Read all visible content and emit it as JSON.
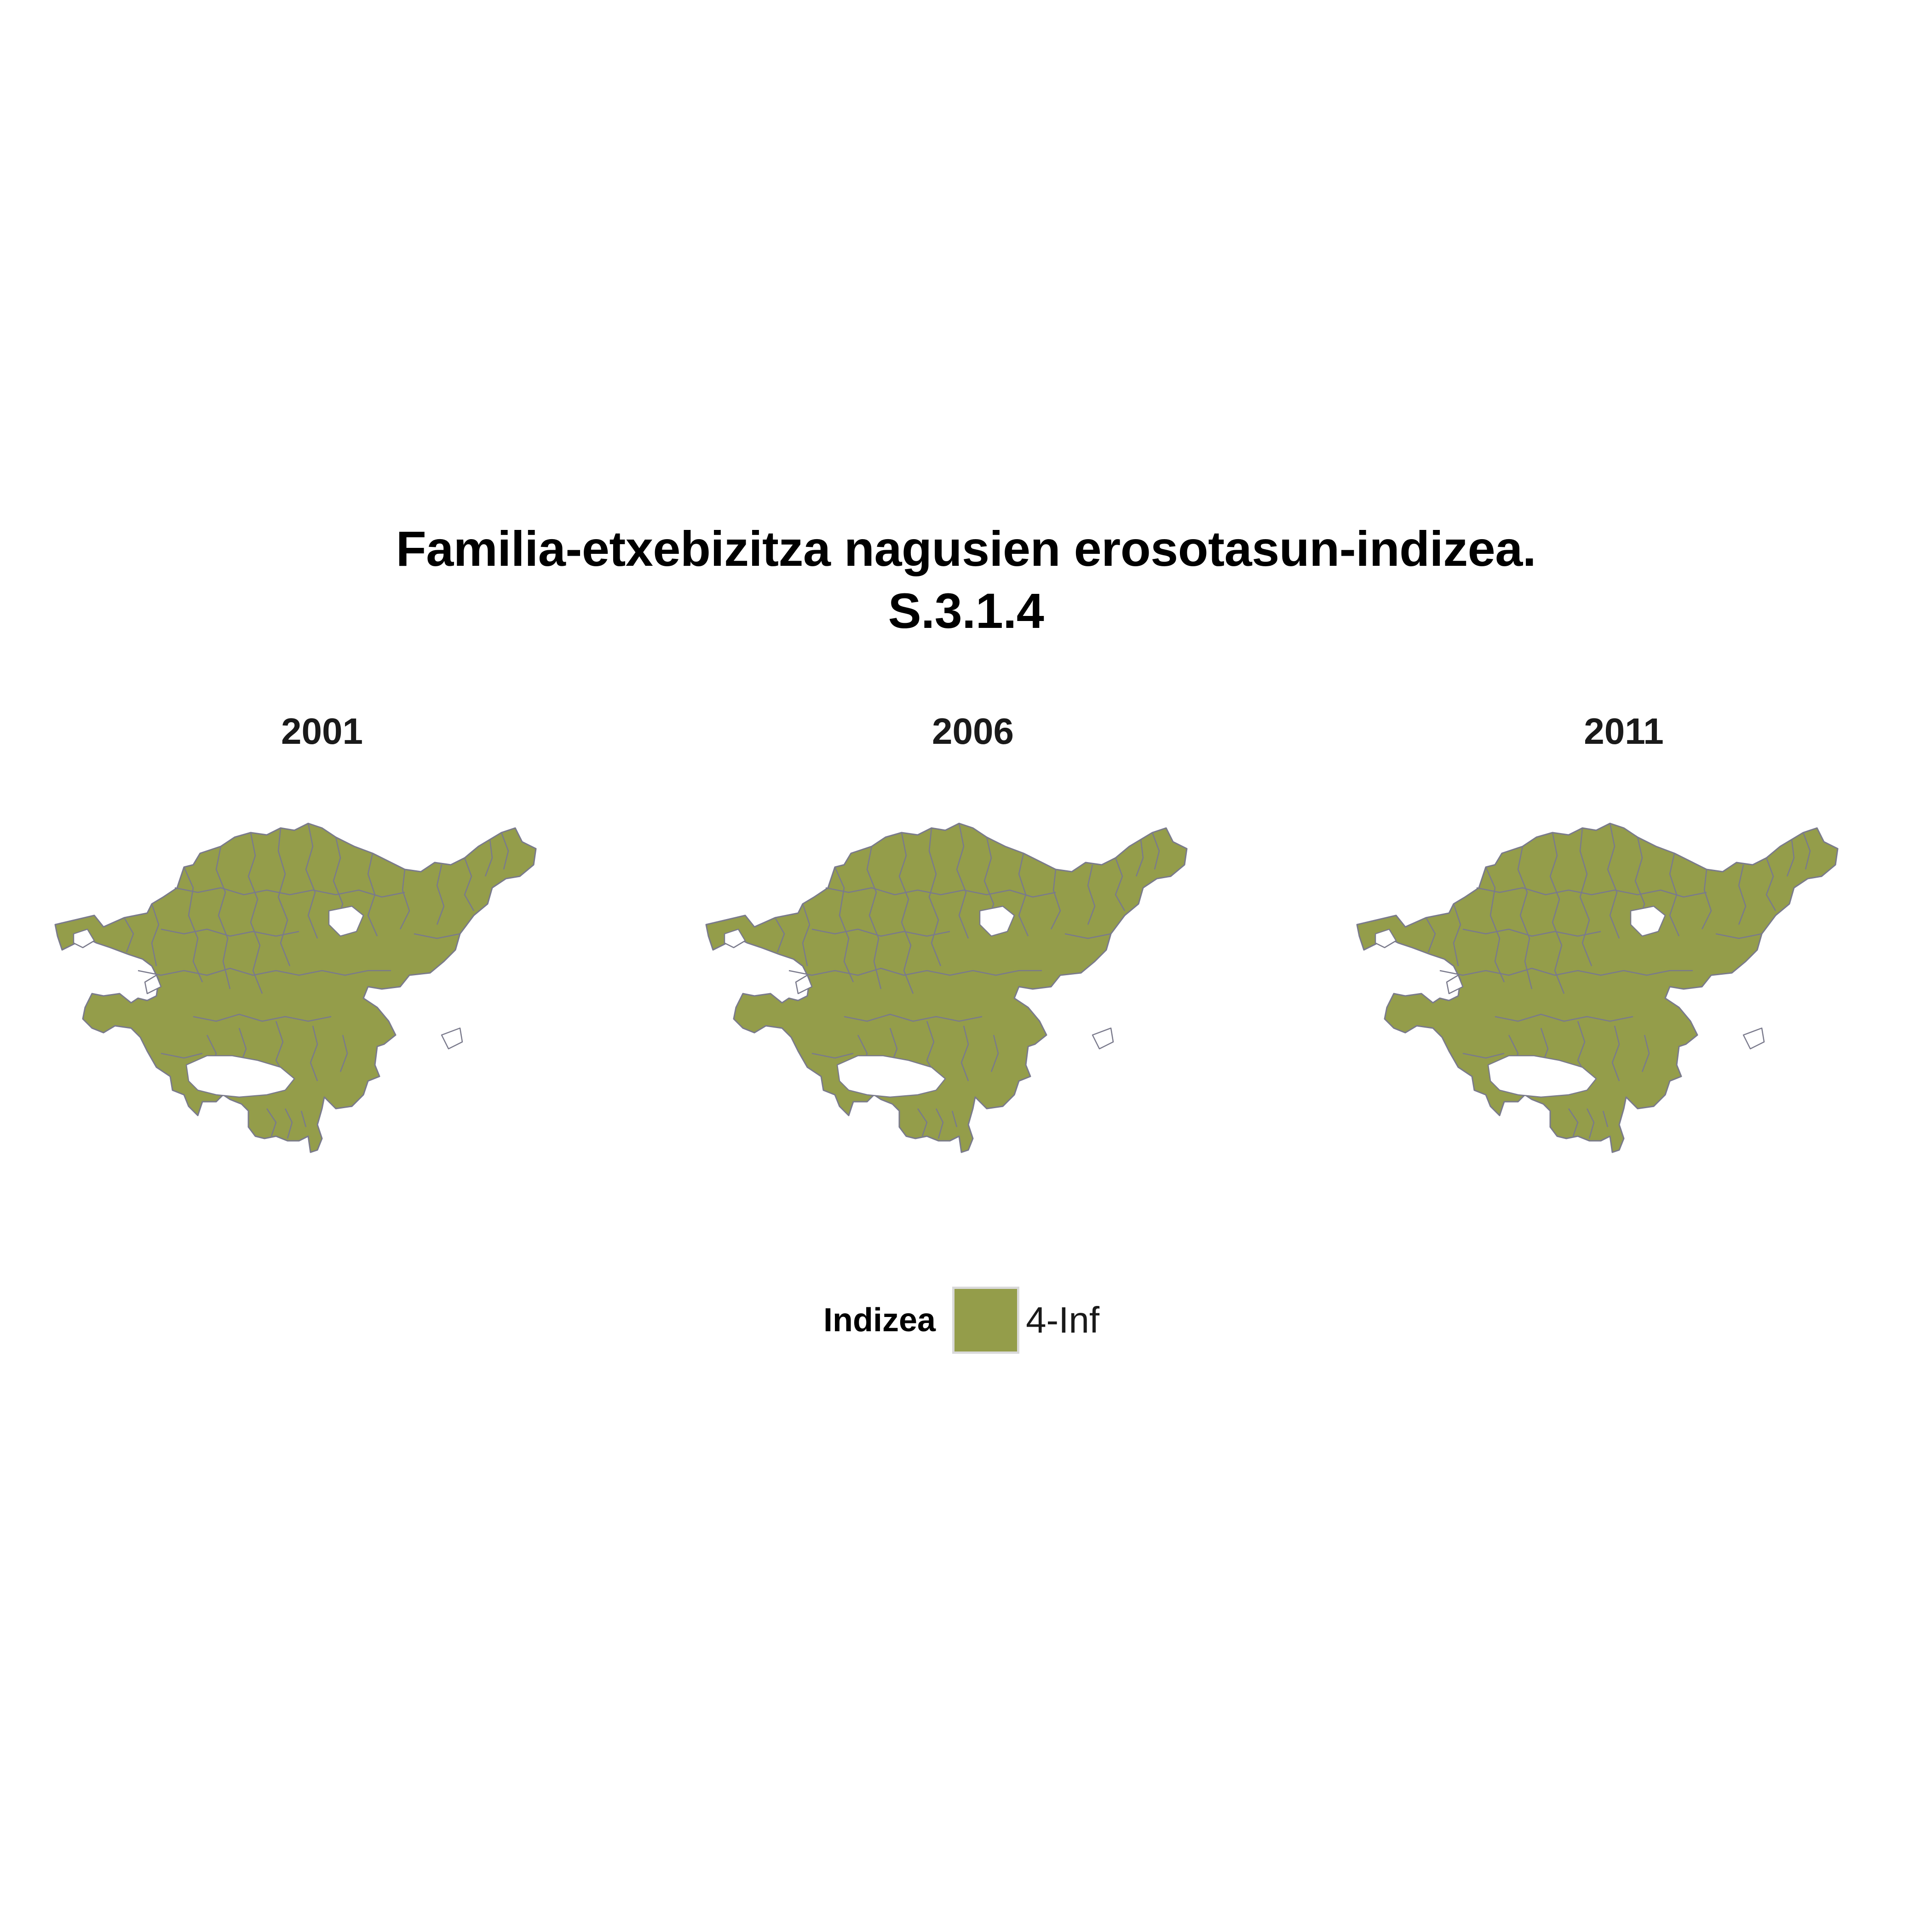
{
  "title": {
    "line1": "Familia-etxebizitza nagusien erosotasun-indizea.",
    "line2": "S.3.1.4"
  },
  "panels": [
    {
      "label": "2001",
      "category": "4-Inf"
    },
    {
      "label": "2006",
      "category": "4-Inf"
    },
    {
      "label": "2011",
      "category": "4-Inf"
    }
  ],
  "legend": {
    "title": "Indizea",
    "items": [
      {
        "label": "4-Inf",
        "color": "#949d4a"
      }
    ]
  },
  "colors": {
    "fill": "#949d4a",
    "border": "#7a7a8c",
    "background": "#ffffff"
  }
}
